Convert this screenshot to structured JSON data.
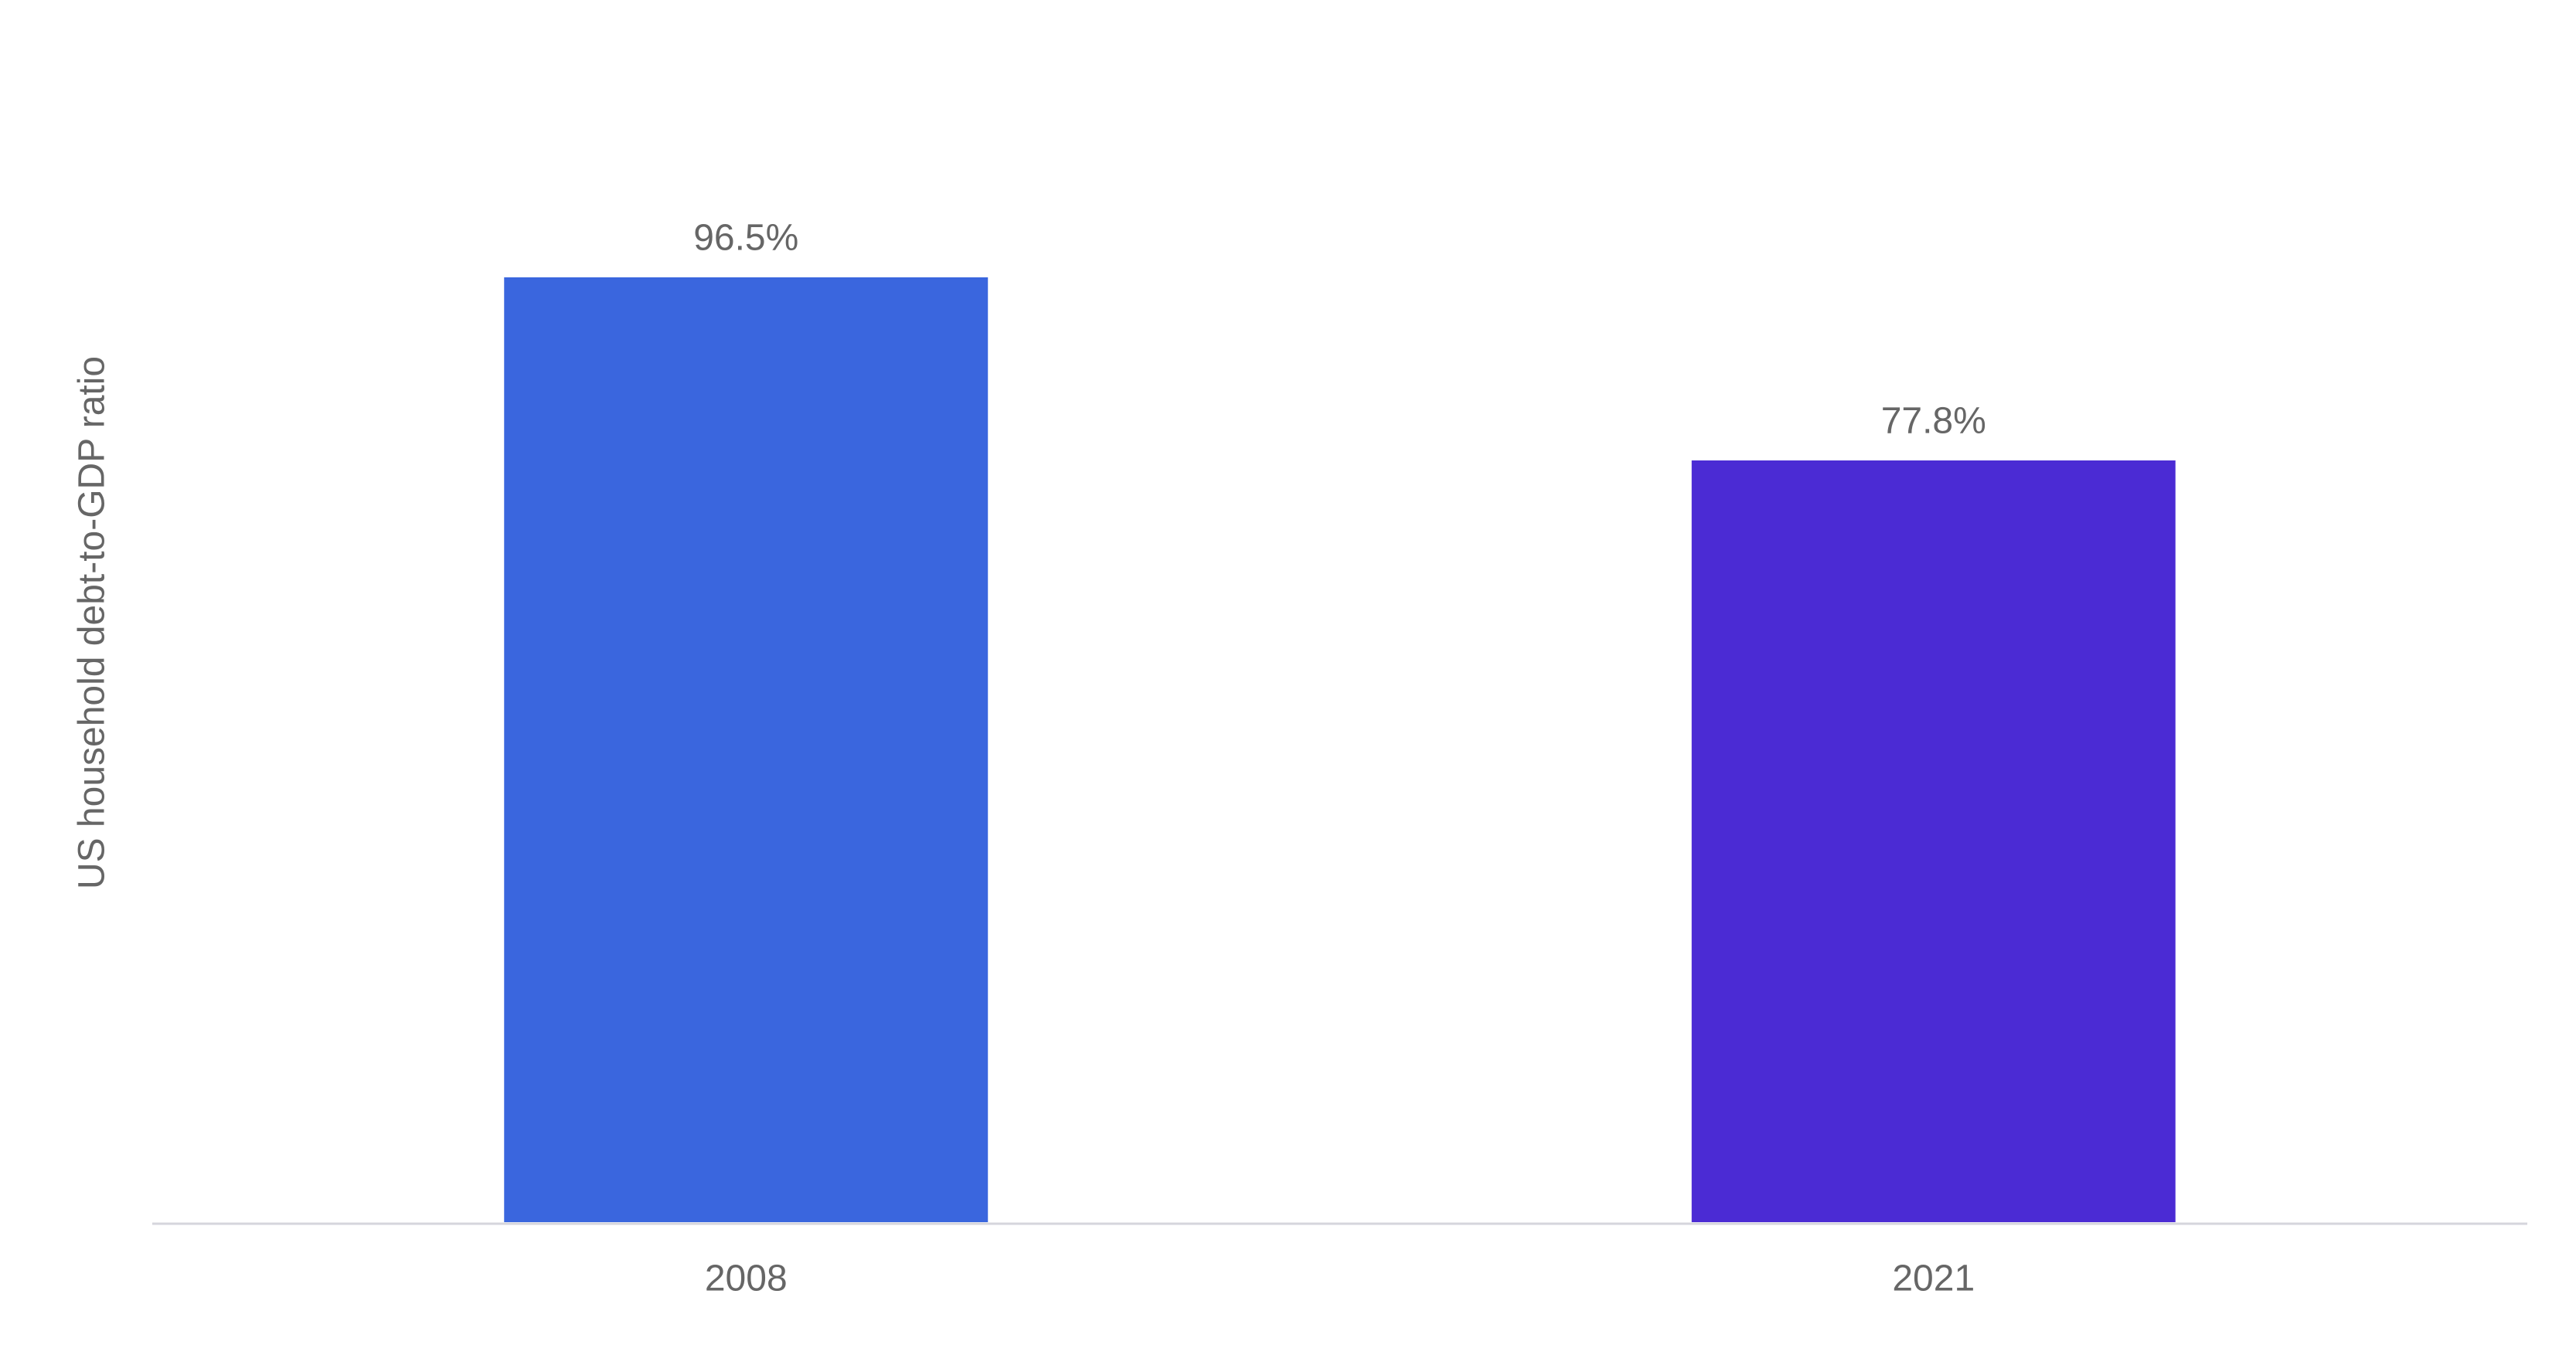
{
  "chart_data": {
    "type": "bar",
    "y_label": "US household debt-to-GDP ratio",
    "categories": [
      "2008",
      "2021"
    ],
    "values": [
      96.5,
      77.8
    ],
    "value_labels": [
      "96.5%",
      "77.8%"
    ],
    "colors": [
      "#3a66de",
      "#4b2bd4"
    ]
  }
}
